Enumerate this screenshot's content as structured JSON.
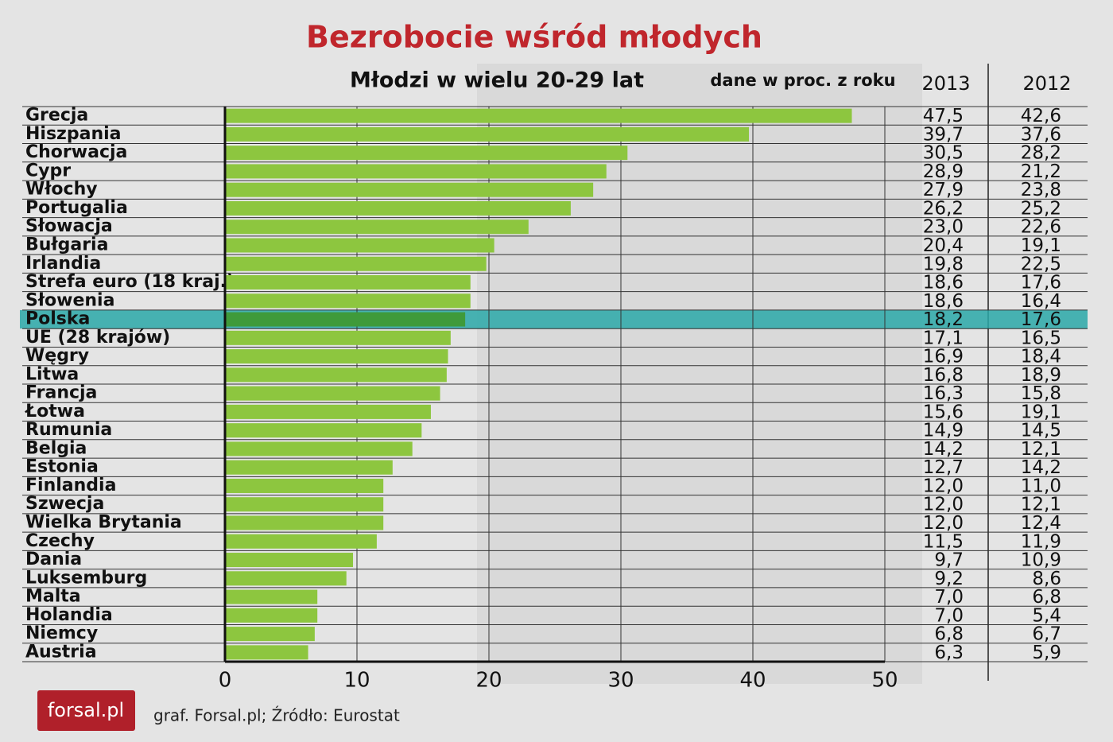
{
  "chart_data": {
    "type": "bar",
    "orientation": "horizontal",
    "title": "Bezrobocie wśród młodych",
    "subtitle": "Młodzi w wielu 20-29 lat",
    "note": "dane w proc. z roku",
    "categories": [
      "Grecja",
      "Hiszpania",
      "Chorwacja",
      "Cypr",
      "Włochy",
      "Portugalia",
      "Słowacja",
      "Bułgaria",
      "Irlandia",
      "Strefa euro (18 kraj.)",
      "Słowenia",
      "Polska",
      "UE (28 krajów)",
      "Węgry",
      "Litwa",
      "Francja",
      "Łotwa",
      "Rumunia",
      "Belgia",
      "Estonia",
      "Finlandia",
      "Szwecja",
      "Wielka Brytania",
      "Czechy",
      "Dania",
      "Luksemburg",
      "Malta",
      "Holandia",
      "Niemcy",
      "Austria"
    ],
    "series": [
      {
        "name": "2013",
        "color": "#8dc63f",
        "drawn": true,
        "values": [
          47.5,
          39.7,
          30.5,
          28.9,
          27.9,
          26.2,
          23.0,
          20.4,
          19.8,
          18.6,
          18.6,
          18.2,
          17.1,
          16.9,
          16.8,
          16.3,
          15.6,
          14.9,
          14.2,
          12.7,
          12.0,
          12.0,
          12.0,
          11.5,
          9.7,
          9.2,
          7.0,
          7.0,
          6.8,
          6.3
        ],
        "value_labels": [
          "47,5",
          "39,7",
          "30,5",
          "28,9",
          "27,9",
          "26,2",
          "23,0",
          "20,4",
          "19,8",
          "18,6",
          "18,6",
          "18,2",
          "17,1",
          "16,9",
          "16,8",
          "16,3",
          "15,6",
          "14,9",
          "14,2",
          "12,7",
          "12,0",
          "12,0",
          "12,0",
          "11,5",
          "9,7",
          "9,2",
          "7,0",
          "7,0",
          "6,8",
          "6,3"
        ]
      },
      {
        "name": "2012",
        "drawn": false,
        "values": [
          42.6,
          37.6,
          28.2,
          21.2,
          23.8,
          25.2,
          22.6,
          19.1,
          22.5,
          17.6,
          16.4,
          17.6,
          16.5,
          18.4,
          18.9,
          15.8,
          19.1,
          14.5,
          12.1,
          14.2,
          11.0,
          12.1,
          12.4,
          11.9,
          10.9,
          8.6,
          6.8,
          5.4,
          6.7,
          5.9
        ],
        "value_labels": [
          "42,6",
          "37,6",
          "28,2",
          "21,2",
          "23,8",
          "25,2",
          "22,6",
          "19,1",
          "22,5",
          "17,6",
          "16,4",
          "17,6",
          "16,5",
          "18,4",
          "18,9",
          "15,8",
          "19,1",
          "14,5",
          "12,1",
          "14,2",
          "11,0",
          "12,1",
          "12,4",
          "11,9",
          "10,9",
          "8,6",
          "6,8",
          "5,4",
          "6,7",
          "5,9"
        ]
      }
    ],
    "highlight": {
      "index": 11,
      "color": "#2aa8a8",
      "bar_color": "#3f9a3a"
    },
    "xlim": [
      0,
      50
    ],
    "xticks": [
      0,
      10,
      20,
      30,
      40,
      50
    ],
    "grid": true,
    "source": "graf. Forsal.pl; Źródło: Eurostat",
    "logo": "forsal.pl"
  }
}
